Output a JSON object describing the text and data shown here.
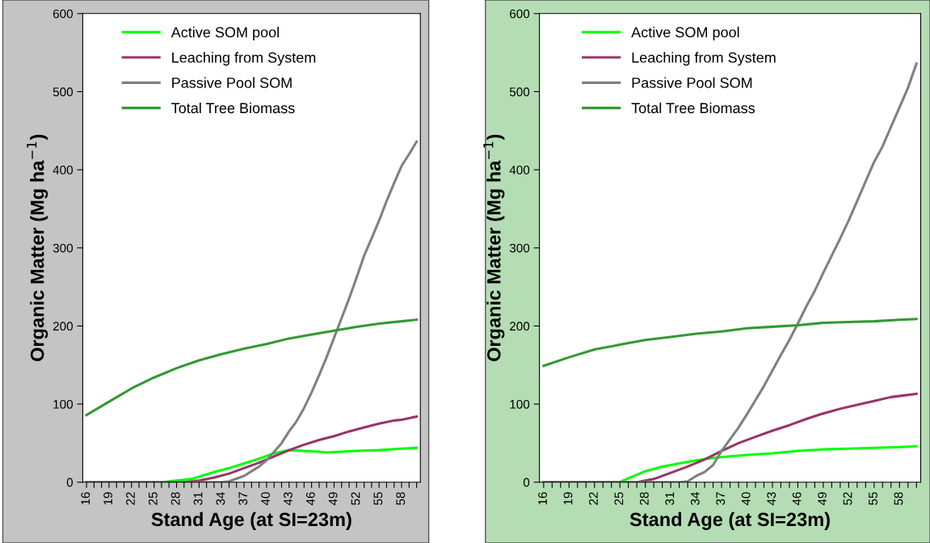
{
  "chart_data": [
    {
      "type": "line",
      "xlabel": "Stand Age (at SI=23m)",
      "ylabel": "Organic Matter (Mg ha$^{−1}$)",
      "xlim": [
        15.5,
        60.5
      ],
      "ylim": [
        0,
        600
      ],
      "yticks": [
        0,
        100,
        200,
        300,
        400,
        500,
        600
      ],
      "xticks": [
        16,
        {
          "value": 17,
          "label": null
        },
        {
          "value": 18,
          "label": null
        },
        19,
        {
          "value": 20,
          "label": null
        },
        {
          "value": 21,
          "label": null
        },
        22,
        {
          "value": 23,
          "label": null
        },
        {
          "value": 24,
          "label": null
        },
        25,
        {
          "value": 26,
          "label": null
        },
        {
          "value": 27,
          "label": null
        },
        28,
        {
          "value": 29,
          "label": null
        },
        {
          "value": 30,
          "label": null
        },
        31,
        {
          "value": 32,
          "label": null
        },
        {
          "value": 33,
          "label": null
        },
        34,
        {
          "value": 35,
          "label": null
        },
        {
          "value": 36,
          "label": null
        },
        37,
        {
          "value": 38,
          "label": null
        },
        {
          "value": 39,
          "label": null
        },
        40,
        {
          "value": 41,
          "label": null
        },
        {
          "value": 42,
          "label": null
        },
        43,
        {
          "value": 44,
          "label": null
        },
        {
          "value": 45,
          "label": null
        },
        46,
        {
          "value": 47,
          "label": null
        },
        {
          "value": 48,
          "label": null
        },
        49,
        {
          "value": 50,
          "label": null
        },
        {
          "value": 51,
          "label": null
        },
        52,
        {
          "value": 53,
          "label": null
        },
        {
          "value": 54,
          "label": null
        },
        55,
        {
          "value": 56,
          "label": null
        },
        {
          "value": 57,
          "label": null
        },
        58,
        {
          "value": 59,
          "label": null
        },
        {
          "value": 60,
          "label": null
        }
      ],
      "grid": false,
      "legend": "top left",
      "series": [
        {
          "name": "Active SOM pool",
          "color": "#00ff00",
          "x": [
            16,
            25,
            26,
            28,
            30,
            31,
            33,
            35,
            37,
            39,
            41,
            43,
            45,
            47,
            48,
            50,
            52,
            55,
            58,
            60
          ],
          "values": [
            0,
            0,
            0,
            2,
            4,
            7,
            13,
            18,
            24,
            30,
            37,
            41,
            40,
            39,
            38,
            39,
            40,
            41,
            43,
            44
          ]
        },
        {
          "name": "Leaching from System",
          "color": "#993366",
          "x": [
            16,
            29,
            30,
            31,
            33,
            35,
            37,
            39,
            41,
            43,
            45,
            47,
            49,
            51,
            53,
            55,
            57,
            58,
            60
          ],
          "values": [
            0,
            0,
            1,
            2,
            6,
            11,
            18,
            25,
            33,
            41,
            48,
            54,
            59,
            65,
            70,
            75,
            79,
            80,
            84
          ]
        },
        {
          "name": "Passive Pool SOM",
          "color": "#808080",
          "x": [
            16,
            34,
            35,
            37,
            39,
            40,
            42,
            43,
            44,
            45,
            46,
            47,
            48,
            49,
            50,
            51,
            52,
            53,
            54,
            55,
            56,
            57,
            58,
            59,
            60
          ],
          "values": [
            0,
            0,
            1,
            8,
            20,
            28,
            50,
            65,
            78,
            95,
            115,
            137,
            160,
            185,
            210,
            235,
            262,
            290,
            312,
            335,
            360,
            383,
            405,
            420,
            436
          ]
        },
        {
          "name": "Total Tree Biomass",
          "color": "#339933",
          "x": [
            16,
            19,
            22,
            25,
            28,
            31,
            34,
            37,
            40,
            43,
            46,
            49,
            52,
            55,
            58,
            60
          ],
          "values": [
            86,
            103,
            120,
            134,
            146,
            156,
            164,
            171,
            177,
            184,
            189,
            194,
            199,
            203,
            206,
            208
          ]
        }
      ]
    },
    {
      "type": "line",
      "xlabel": "Stand Age (at SI=23m)",
      "ylabel": "Organic Matter (Mg ha$^{−1}$)",
      "xlim": [
        15.5,
        60.5
      ],
      "ylim": [
        0,
        600
      ],
      "yticks": [
        0,
        100,
        200,
        300,
        400,
        500,
        600
      ],
      "xticks": [
        16,
        {
          "value": 17,
          "label": null
        },
        {
          "value": 18,
          "label": null
        },
        19,
        {
          "value": 20,
          "label": null
        },
        {
          "value": 21,
          "label": null
        },
        22,
        {
          "value": 23,
          "label": null
        },
        {
          "value": 24,
          "label": null
        },
        25,
        {
          "value": 26,
          "label": null
        },
        {
          "value": 27,
          "label": null
        },
        28,
        {
          "value": 29,
          "label": null
        },
        {
          "value": 30,
          "label": null
        },
        31,
        {
          "value": 32,
          "label": null
        },
        {
          "value": 33,
          "label": null
        },
        34,
        {
          "value": 35,
          "label": null
        },
        {
          "value": 36,
          "label": null
        },
        37,
        {
          "value": 38,
          "label": null
        },
        {
          "value": 39,
          "label": null
        },
        40,
        {
          "value": 41,
          "label": null
        },
        {
          "value": 42,
          "label": null
        },
        43,
        {
          "value": 44,
          "label": null
        },
        {
          "value": 45,
          "label": null
        },
        46,
        {
          "value": 47,
          "label": null
        },
        {
          "value": 48,
          "label": null
        },
        49,
        {
          "value": 50,
          "label": null
        },
        {
          "value": 51,
          "label": null
        },
        52,
        {
          "value": 53,
          "label": null
        },
        {
          "value": 54,
          "label": null
        },
        55,
        {
          "value": 56,
          "label": null
        },
        {
          "value": 57,
          "label": null
        },
        58,
        {
          "value": 59,
          "label": null
        },
        {
          "value": 60,
          "label": null
        }
      ],
      "grid": false,
      "legend": "top left",
      "series": [
        {
          "name": "Active SOM pool",
          "color": "#00ff00",
          "x": [
            16,
            25,
            26,
            28,
            30,
            32,
            34,
            36,
            38,
            40,
            43,
            46,
            49,
            52,
            55,
            58,
            60
          ],
          "values": [
            0,
            0,
            5,
            14,
            20,
            24,
            28,
            31,
            33,
            35,
            37,
            40,
            42,
            43,
            44,
            45,
            46
          ]
        },
        {
          "name": "Leaching from System",
          "color": "#993366",
          "x": [
            16,
            27,
            28,
            29,
            31,
            33,
            35,
            37,
            39,
            41,
            43,
            45,
            47,
            49,
            51,
            53,
            55,
            57,
            60
          ],
          "values": [
            0,
            0,
            2,
            4,
            12,
            20,
            29,
            40,
            50,
            58,
            66,
            73,
            81,
            88,
            94,
            99,
            104,
            109,
            113
          ]
        },
        {
          "name": "Passive Pool SOM",
          "color": "#808080",
          "x": [
            16,
            32,
            33,
            34,
            35,
            36,
            37,
            38,
            39,
            40,
            41,
            42,
            43,
            44,
            45,
            46,
            47,
            48,
            49,
            50,
            51,
            52,
            53,
            54,
            55,
            56,
            57,
            58,
            59,
            60
          ],
          "values": [
            0,
            0,
            1,
            8,
            13,
            22,
            40,
            55,
            70,
            87,
            105,
            123,
            143,
            163,
            182,
            203,
            225,
            245,
            268,
            290,
            312,
            335,
            360,
            385,
            410,
            430,
            455,
            480,
            505,
            536
          ]
        },
        {
          "name": "Total Tree Biomass",
          "color": "#339933",
          "x": [
            16,
            19,
            22,
            25,
            28,
            31,
            34,
            37,
            40,
            43,
            46,
            49,
            52,
            55,
            58,
            60
          ],
          "values": [
            149,
            160,
            170,
            176,
            182,
            186,
            190,
            193,
            197,
            199,
            201,
            204,
            205,
            206,
            208,
            209
          ]
        }
      ]
    }
  ]
}
